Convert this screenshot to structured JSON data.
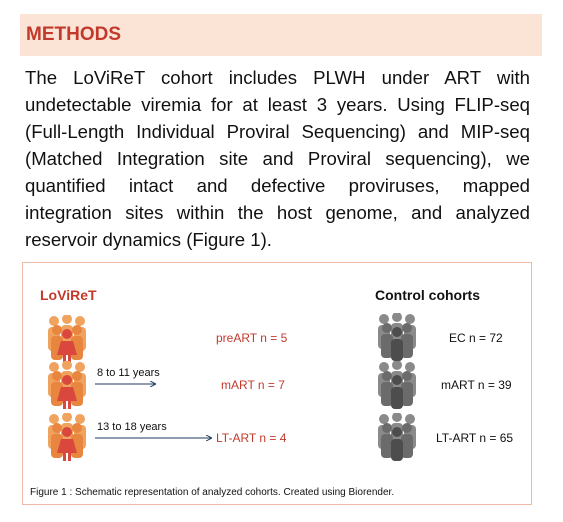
{
  "header": {
    "title": "METHODS"
  },
  "body": "The LoViReT cohort includes PLWH under ART with undetectable viremia for at least 3 years. Using FLIP-seq (Full-Length Individual Proviral Sequencing) and MIP-seq (Matched Integration site and Proviral sequencing), we quantified intact and defective proviruses, mapped integration sites within the host genome, and analyzed reservoir dynamics (Figure 1).",
  "figure": {
    "left_title": "LoViReT",
    "right_title": "Control cohorts",
    "left_groups": [
      "preART n = 5",
      "mART n = 7",
      "LT-ART n = 4"
    ],
    "arrows": [
      "8 to 11 years",
      "13 to 18 years"
    ],
    "right_groups": [
      "EC n = 72",
      "mART n = 39",
      "LT-ART n = 65"
    ],
    "caption": "Figure 1 : Schematic representation of  analyzed cohorts. Created using Biorender."
  }
}
